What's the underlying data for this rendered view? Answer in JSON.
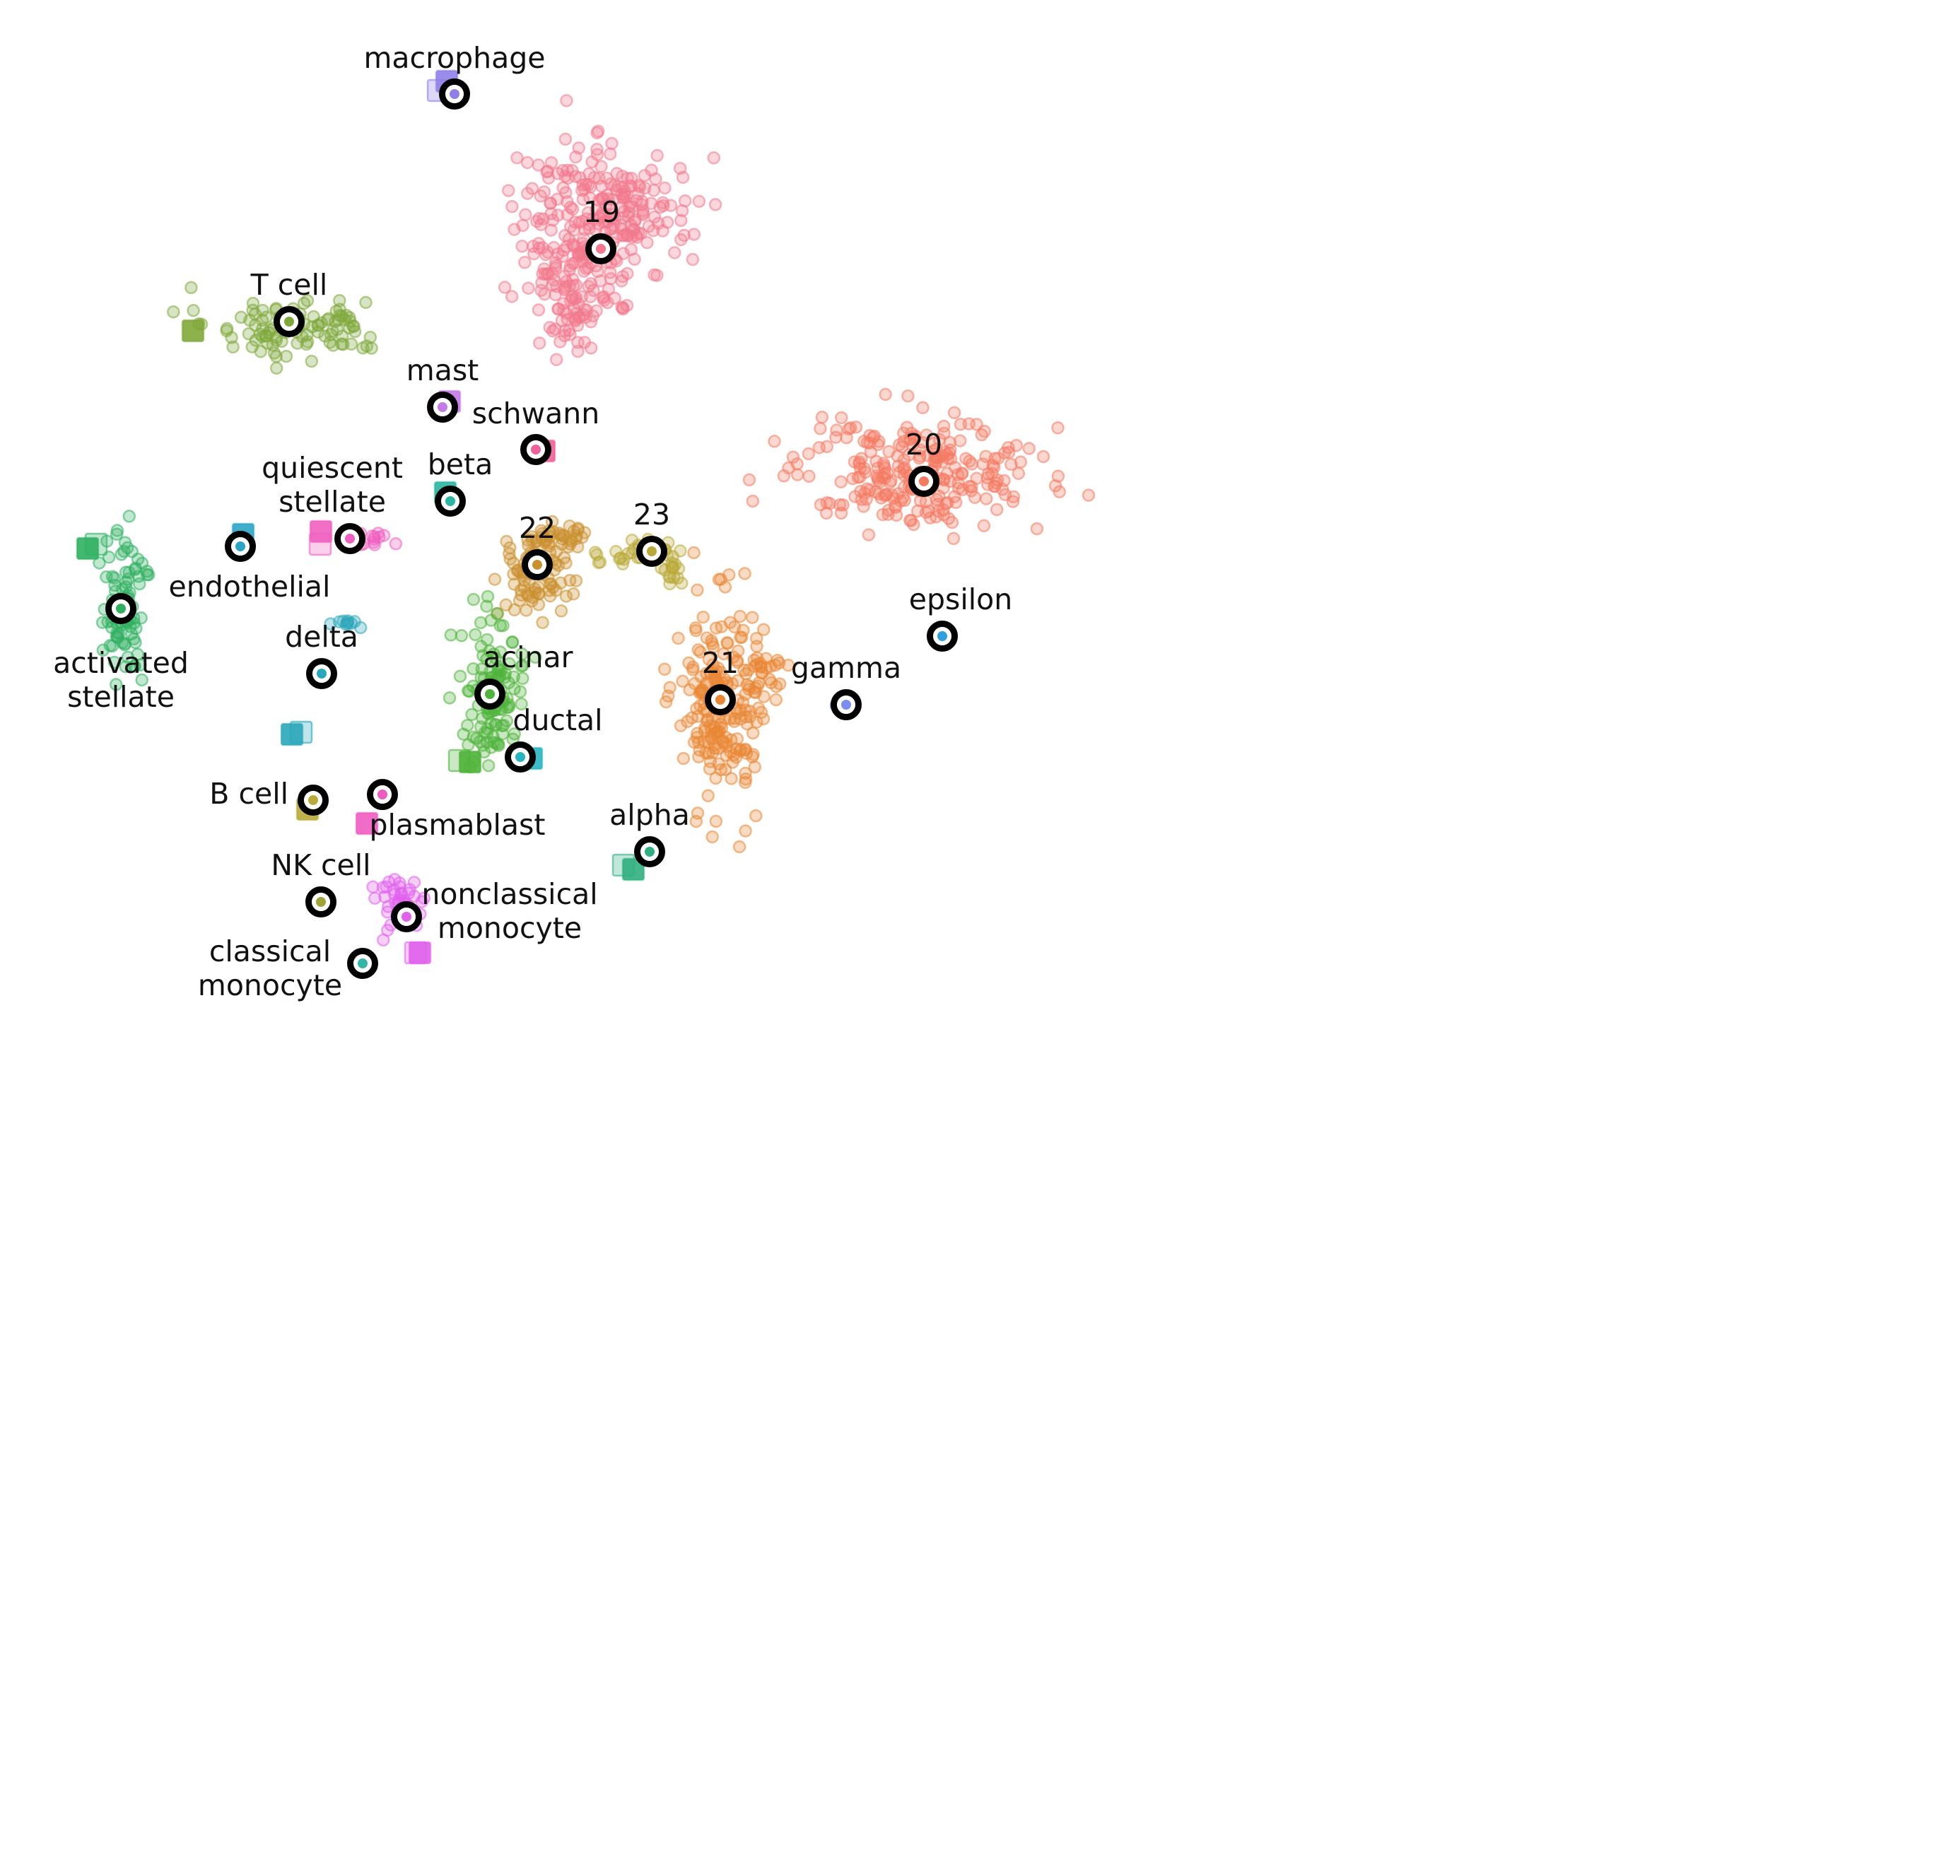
{
  "chart_data": {
    "type": "scatter",
    "title": "",
    "xlabel": "",
    "ylabel": "",
    "grid": false,
    "axes_visible": false,
    "legend": "none",
    "xlim": [
      0,
      1560
    ],
    "ylim": [
      0,
      1492
    ],
    "centroid_style": {
      "ring": "#000000",
      "ring_outer_r": 22,
      "ring_inner_r": 13
    },
    "clusters": [
      {
        "label": "macrophage",
        "color": "#8f7fe8",
        "centroid": [
          643,
          133
        ],
        "label_at": [
          643,
          85
        ],
        "anchor": "middle",
        "blobs": [],
        "squares": [
          [
            632,
            115
          ],
          [
            620,
            128
          ]
        ]
      },
      {
        "label": "19",
        "color": "#f2798d",
        "centroid": [
          850,
          352
        ],
        "label_at": [
          851,
          303
        ],
        "anchor": "middle",
        "blobs": [
          [
            815,
            330,
            80,
            130,
            160
          ],
          [
            890,
            300,
            80,
            70,
            120
          ],
          [
            810,
            420,
            50,
            60,
            60
          ]
        ],
        "squares": []
      },
      {
        "label": "T cell",
        "color": "#7fa83a",
        "centroid": [
          409,
          455
        ],
        "label_at": [
          409,
          406
        ],
        "anchor": "middle",
        "blobs": [
          [
            420,
            460,
            120,
            38,
            110
          ]
        ],
        "squares": [
          [
            273,
            468
          ]
        ]
      },
      {
        "label": "mast",
        "color": "#c47ae8",
        "centroid": [
          626,
          576
        ],
        "label_at": [
          626,
          527
        ],
        "anchor": "middle",
        "blobs": [],
        "squares": [
          [
            636,
            568
          ]
        ]
      },
      {
        "label": "schwann",
        "color": "#f0609a",
        "centroid": [
          758,
          636
        ],
        "label_at": [
          758,
          588
        ],
        "anchor": "middle",
        "blobs": [],
        "squares": [
          [
            770,
            638
          ]
        ]
      },
      {
        "label": "beta",
        "color": "#2bb5a2",
        "centroid": [
          637,
          709
        ],
        "label_at": [
          651,
          660
        ],
        "anchor": "middle",
        "blobs": [],
        "squares": [
          [
            630,
            697
          ]
        ]
      },
      {
        "label": "20",
        "color": "#f47a62",
        "centroid": [
          1307,
          681
        ],
        "label_at": [
          1307,
          632
        ],
        "anchor": "middle",
        "blobs": [
          [
            1300,
            670,
            150,
            70,
            260
          ]
        ],
        "squares": []
      },
      {
        "label": "quiescent\nstellate",
        "color": "#ef5fbf",
        "centroid": [
          495,
          762
        ],
        "label_at": [
          470,
          665
        ],
        "anchor": "middle",
        "blobs": [
          [
            530,
            765,
            25,
            10,
            14
          ]
        ],
        "squares": [
          [
            454,
            752
          ],
          [
            453,
            770
          ]
        ]
      },
      {
        "label": "endothelial",
        "color": "#2ba4c8",
        "centroid": [
          340,
          773
        ],
        "label_at": [
          353,
          833
        ],
        "anchor": "middle",
        "blobs": [],
        "squares": [
          [
            344,
            756
          ]
        ]
      },
      {
        "label": "22",
        "color": "#cb902e",
        "centroid": [
          760,
          799
        ],
        "label_at": [
          760,
          750
        ],
        "anchor": "middle",
        "blobs": [
          [
            750,
            810,
            50,
            55,
            80
          ],
          [
            790,
            760,
            35,
            18,
            30
          ]
        ],
        "squares": []
      },
      {
        "label": "23",
        "color": "#b9a938",
        "centroid": [
          922,
          780
        ],
        "label_at": [
          922,
          731
        ],
        "anchor": "middle",
        "blobs": [
          [
            910,
            780,
            55,
            20,
            40
          ],
          [
            955,
            805,
            20,
            20,
            12
          ]
        ],
        "squares": []
      },
      {
        "label": "activated\nstellate",
        "color": "#2fb061",
        "centroid": [
          171,
          861
        ],
        "label_at": [
          171,
          941
        ],
        "anchor": "middle",
        "blobs": [
          [
            175,
            860,
            28,
            90,
            90
          ]
        ],
        "squares": [
          [
            124,
            776
          ],
          [
            136,
            770
          ]
        ]
      },
      {
        "label": "epsilon",
        "color": "#2f9fe0",
        "centroid": [
          1333,
          900
        ],
        "label_at": [
          1359,
          851
        ],
        "anchor": "middle",
        "blobs": [],
        "squares": []
      },
      {
        "label": "delta",
        "color": "#2aa7ba",
        "centroid": [
          455,
          953
        ],
        "label_at": [
          455,
          904
        ],
        "anchor": "middle",
        "blobs": [
          [
            490,
            880,
            14,
            12,
            10
          ]
        ],
        "squares": [
          [
            413,
            1039
          ],
          [
            426,
            1036
          ]
        ]
      },
      {
        "label": "acinar",
        "color": "#4fb43a",
        "centroid": [
          693,
          982
        ],
        "label_at": [
          747,
          933
        ],
        "anchor": "middle",
        "blobs": [
          [
            700,
            980,
            40,
            85,
            120
          ]
        ],
        "squares": [
          [
            665,
            1078
          ],
          [
            650,
            1076
          ]
        ]
      },
      {
        "label": "21",
        "color": "#e98734",
        "centroid": [
          1019,
          990
        ],
        "label_at": [
          1019,
          941
        ],
        "anchor": "middle",
        "blobs": [
          [
            1020,
            990,
            55,
            130,
            200
          ],
          [
            1075,
            950,
            25,
            40,
            25
          ]
        ],
        "squares": []
      },
      {
        "label": "gamma",
        "color": "#7d8cf0",
        "centroid": [
          1197,
          997
        ],
        "label_at": [
          1197,
          948
        ],
        "anchor": "middle",
        "blobs": [
          [
            1190,
            995,
            18,
            8,
            8
          ]
        ],
        "squares": []
      },
      {
        "label": "ductal",
        "color": "#28b4c0",
        "centroid": [
          736,
          1071
        ],
        "label_at": [
          789,
          1022
        ],
        "anchor": "middle",
        "blobs": [],
        "squares": [
          [
            752,
            1073
          ]
        ]
      },
      {
        "label": "B cell",
        "color": "#b8ab3a",
        "centroid": [
          443,
          1132
        ],
        "label_at": [
          408,
          1126
        ],
        "anchor": "end",
        "blobs": [],
        "squares": [
          [
            435,
            1145
          ]
        ]
      },
      {
        "label": "plasmablast",
        "color": "#ee5cc0",
        "centroid": [
          541,
          1124
        ],
        "label_at": [
          647,
          1170
        ],
        "anchor": "middle",
        "blobs": [],
        "squares": [
          [
            519,
            1165
          ]
        ]
      },
      {
        "label": "alpha",
        "color": "#30b080",
        "centroid": [
          919,
          1205
        ],
        "label_at": [
          919,
          1156
        ],
        "anchor": "middle",
        "blobs": [],
        "squares": [
          [
            896,
            1230
          ],
          [
            882,
            1224
          ]
        ]
      },
      {
        "label": "NK cell",
        "color": "#9ea436",
        "centroid": [
          454,
          1276
        ],
        "label_at": [
          454,
          1227
        ],
        "anchor": "middle",
        "blobs": [],
        "squares": []
      },
      {
        "label": "nonclassical\nmonocyte",
        "color": "#e061ec",
        "centroid": [
          575,
          1297
        ],
        "label_at": [
          721,
          1268
        ],
        "anchor": "middle",
        "blobs": [
          [
            565,
            1275,
            28,
            40,
            40
          ]
        ],
        "squares": [
          [
            594,
            1348
          ],
          [
            588,
            1348
          ]
        ]
      },
      {
        "label": "classical\nmonocyte",
        "color": "#34b6a6",
        "centroid": [
          513,
          1363
        ],
        "label_at": [
          382,
          1349
        ],
        "anchor": "middle",
        "blobs": [],
        "squares": []
      }
    ]
  }
}
